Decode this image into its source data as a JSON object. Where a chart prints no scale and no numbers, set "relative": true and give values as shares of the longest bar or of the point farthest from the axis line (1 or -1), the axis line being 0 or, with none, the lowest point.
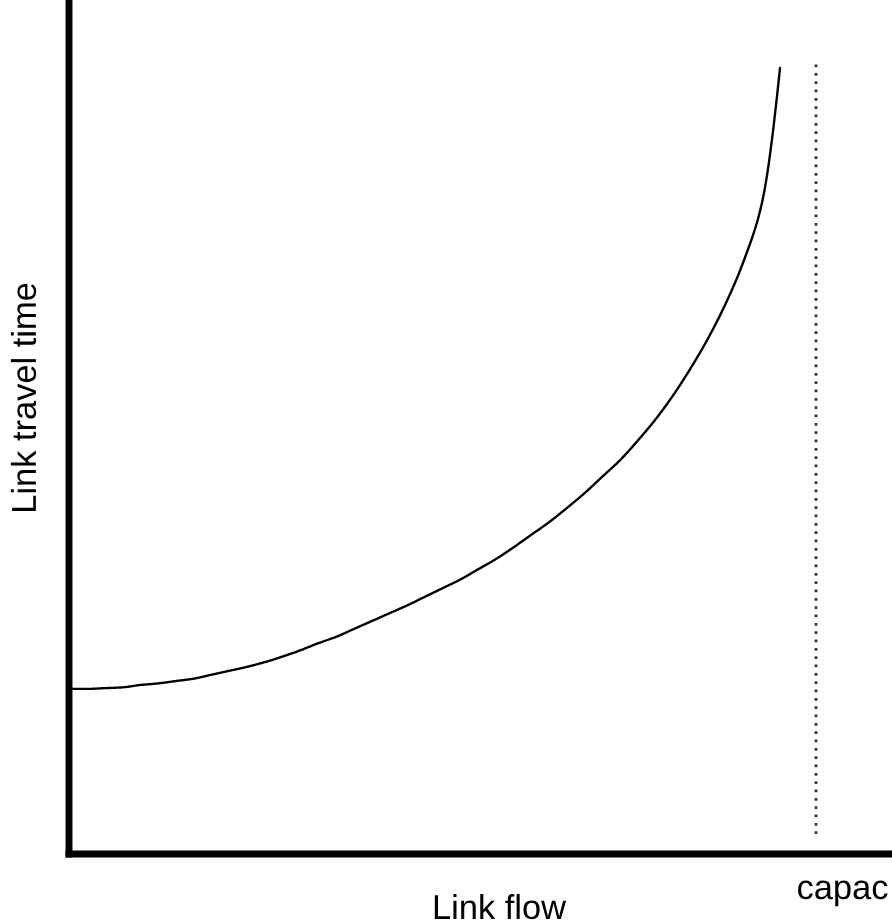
{
  "chart_data": {
    "type": "line",
    "xlabel": "Link flow",
    "ylabel": "Link travel time",
    "relative": true,
    "categories": [
      null,
      null,
      null,
      null,
      null,
      null,
      null,
      null,
      null,
      null,
      null,
      null,
      null,
      null,
      null,
      null,
      null,
      null,
      null,
      null,
      null,
      null,
      null,
      null,
      null,
      null,
      null,
      null,
      null,
      null,
      null,
      null,
      null,
      null,
      null,
      null,
      null,
      null,
      null,
      null,
      null
    ],
    "series": [
      {
        "color": "#000000",
        "values": [
          0.21,
          0.21,
          0.211,
          0.212,
          0.215,
          0.217,
          0.22,
          0.223,
          0.228,
          0.233,
          0.238,
          0.244,
          0.251,
          0.259,
          0.268,
          0.276,
          0.286,
          0.296,
          0.306,
          0.316,
          0.327,
          0.338,
          0.349,
          0.362,
          0.375,
          0.39,
          0.406,
          0.422,
          0.44,
          0.459,
          0.48,
          0.501,
          0.526,
          0.553,
          0.584,
          0.619,
          0.658,
          0.703,
          0.757,
          0.83,
          1.0
        ]
      }
    ],
    "annotations": [
      "capac"
    ]
  }
}
